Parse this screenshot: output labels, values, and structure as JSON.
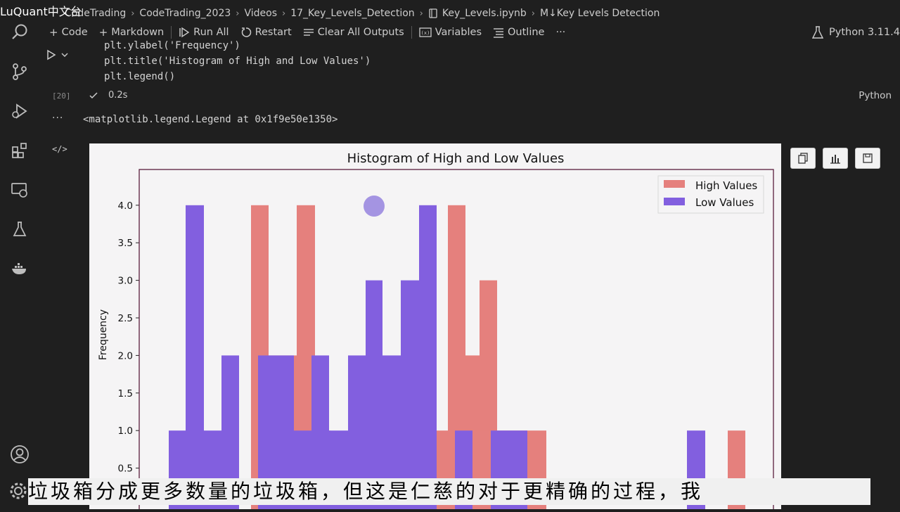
{
  "watermark": "LuQuant中文台",
  "breadcrumb": [
    "CodeTrading",
    "CodeTrading_2023",
    "Videos",
    "17_Key_Levels_Detection",
    "Key_Levels.ipynb",
    "M↓Key Levels Detection"
  ],
  "toolbar": {
    "code": "Code",
    "markdown": "Markdown",
    "run_all": "Run All",
    "restart": "Restart",
    "clear_outputs": "Clear All Outputs",
    "variables": "Variables",
    "outline": "Outline",
    "more": "···",
    "kernel": "Python 3.11.4"
  },
  "cell": {
    "code_lines": [
      "plt.ylabel('Frequency')",
      "plt.title('Histogram of High and Low Values')",
      "plt.legend()"
    ],
    "exec_count": "[20]",
    "duration": "0.2s",
    "language": "Python",
    "output_dots": "···",
    "output_text": "<matplotlib.legend.Legend at 0x1f9e50e1350>",
    "output_code_icon": "</>"
  },
  "colors": {
    "high": "#e5807d",
    "low": "#825fdf",
    "axes_bg": "#f5f4f5",
    "frame": "#5a1e3c"
  },
  "chart_data": {
    "type": "bar",
    "title": "Histogram of High and Low Values",
    "xlabel": "",
    "ylabel": "Frequency",
    "ylim": [
      0,
      4.2
    ],
    "yticks": [
      "0.5",
      "1.0",
      "1.5",
      "2.0",
      "2.5",
      "3.0",
      "3.5",
      "4.0"
    ],
    "legend_position": "top-right",
    "series": [
      {
        "name": "High Values",
        "bins": [
          [
            357,
            382,
            4
          ],
          [
            370,
            422,
            2
          ],
          [
            422,
            448,
            4
          ],
          [
            422,
            470,
            1
          ],
          [
            620,
            650,
            1
          ],
          [
            637,
            662,
            4
          ],
          [
            662,
            687,
            2
          ],
          [
            682,
            707,
            3
          ],
          [
            672,
            750,
            1
          ],
          [
            750,
            777,
            1
          ],
          [
            1035,
            1060,
            1
          ]
        ]
      },
      {
        "name": "Low Values",
        "bins": [
          [
            240,
            265,
            1
          ],
          [
            264,
            290,
            4
          ],
          [
            290,
            315,
            1
          ],
          [
            315,
            340,
            2
          ],
          [
            367,
            418,
            2
          ],
          [
            418,
            443,
            1
          ],
          [
            443,
            468,
            2
          ],
          [
            468,
            495,
            1
          ],
          [
            495,
            520,
            2
          ],
          [
            520,
            544,
            3
          ],
          [
            544,
            570,
            2
          ],
          [
            570,
            596,
            3
          ],
          [
            596,
            621,
            4
          ],
          [
            647,
            672,
            1
          ],
          [
            698,
            750,
            1
          ],
          [
            977,
            1003,
            1
          ]
        ]
      }
    ]
  },
  "subtitle": "垃圾箱分成更多数量的垃圾箱，但这是仁慈的对于更精确的过程，我"
}
